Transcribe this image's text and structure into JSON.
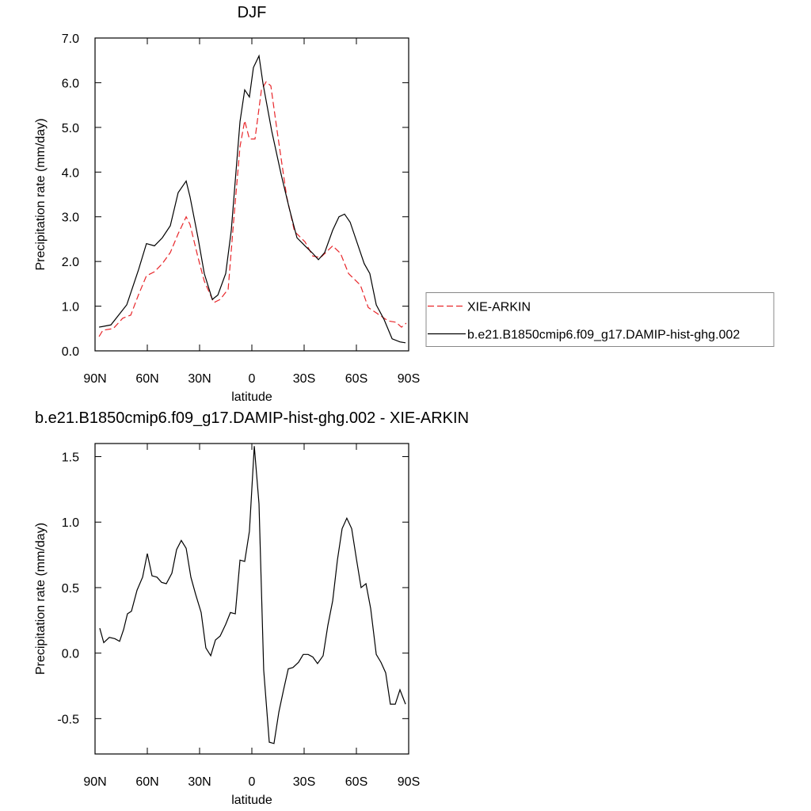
{
  "chart_data": [
    {
      "type": "line",
      "title": "DJF",
      "xlabel": "latitude",
      "ylabel": "Precipitation rate (mm/day)",
      "xlim": [
        90,
        -90
      ],
      "xticks": [
        {
          "value": 90,
          "label": "90N"
        },
        {
          "value": 60,
          "label": "60N"
        },
        {
          "value": 30,
          "label": "30N"
        },
        0,
        {
          "value": -30,
          "label": "30S"
        },
        {
          "value": -60,
          "label": "60S"
        },
        {
          "value": -90,
          "label": "90S"
        }
      ],
      "ylim": [
        0,
        7
      ],
      "yticks": [
        {
          "value": 0,
          "label": "0.0"
        },
        {
          "value": 1,
          "label": "1.0"
        },
        {
          "value": 2,
          "label": "2.0"
        },
        {
          "value": 3,
          "label": "3.0"
        },
        {
          "value": 4,
          "label": "4.0"
        },
        {
          "value": 5,
          "label": "5.0"
        },
        {
          "value": 6,
          "label": "6.0"
        },
        {
          "value": 7,
          "label": "7.0"
        }
      ],
      "legend": "right",
      "series": [
        {
          "name": "XIE-ARKIN",
          "color": "#e8262a",
          "dash": true,
          "x": [
            87.7,
            85.5,
            79.5,
            74.1,
            69.5,
            65,
            60.5,
            55.9,
            51.4,
            46.8,
            42.3,
            37.7,
            35.5,
            30.9,
            27.3,
            21.8,
            18.2,
            13.6,
            10.5,
            6.8,
            4.1,
            1.4,
            -1.8,
            -5.5,
            -8.2,
            -10.9,
            -14.5,
            -20,
            -24.5,
            -30.5,
            -35,
            -39.5,
            -46.4,
            -50.9,
            -55.5,
            -62.3,
            -66.8,
            -71.4,
            -78.2,
            -82.7,
            -85.9,
            -88.6
          ],
          "values": [
            0.32,
            0.46,
            0.5,
            0.73,
            0.8,
            1.26,
            1.68,
            1.77,
            1.95,
            2.2,
            2.62,
            3.0,
            2.83,
            2.09,
            1.56,
            1.08,
            1.15,
            1.38,
            2.88,
            4.57,
            5.15,
            4.74,
            4.74,
            5.84,
            6.02,
            5.93,
            4.92,
            3.45,
            2.67,
            2.44,
            2.12,
            2.09,
            2.35,
            2.18,
            1.73,
            1.47,
            0.97,
            0.85,
            0.67,
            0.64,
            0.53,
            0.62
          ]
        },
        {
          "name": "b.e21.B1850cmip6.f09_g17.DAMIP-hist-ghg.002",
          "color": "#000000",
          "dash": false,
          "x": [
            87.7,
            80.9,
            71.8,
            65,
            60.5,
            55.9,
            51.4,
            46.8,
            42.3,
            37.7,
            35.5,
            30.9,
            27.3,
            22.7,
            19.5,
            15,
            11.8,
            6.8,
            4.1,
            1.4,
            -0.9,
            -4.1,
            -6.4,
            -11.4,
            -16.8,
            -21.4,
            -25.9,
            -30.5,
            -35,
            -38.2,
            -41.8,
            -46.4,
            -50,
            -53.2,
            -56.4,
            -64.5,
            -67.7,
            -71.4,
            -75.9,
            -80.5,
            -85,
            -88.2
          ],
          "values": [
            0.53,
            0.58,
            1.03,
            1.82,
            2.4,
            2.35,
            2.53,
            2.8,
            3.54,
            3.8,
            3.45,
            2.53,
            1.73,
            1.15,
            1.25,
            1.73,
            2.7,
            5.13,
            5.84,
            5.68,
            6.34,
            6.6,
            5.98,
            4.92,
            3.95,
            3.2,
            2.53,
            2.35,
            2.18,
            2.04,
            2.2,
            2.7,
            3.0,
            3.06,
            2.88,
            1.95,
            1.73,
            1.03,
            0.7,
            0.27,
            0.2,
            0.18
          ]
        }
      ]
    },
    {
      "type": "line",
      "title": "b.e21.B1850cmip6.f09_g17.DAMIP-hist-ghg.002 - XIE-ARKIN",
      "xlabel": "latitude",
      "ylabel": "Precipitation rate (mm/day)",
      "xlim": [
        90,
        -90
      ],
      "xticks": [
        {
          "value": 90,
          "label": "90N"
        },
        {
          "value": 60,
          "label": "60N"
        },
        {
          "value": 30,
          "label": "30N"
        },
        0,
        {
          "value": -30,
          "label": "30S"
        },
        {
          "value": -60,
          "label": "60S"
        },
        {
          "value": -90,
          "label": "90S"
        }
      ],
      "ylim": [
        -0.77,
        1.6
      ],
      "yticks": [
        -0.5,
        {
          "value": 0,
          "label": "0.0"
        },
        0.5,
        {
          "value": 1,
          "label": "1.0"
        },
        1.5
      ],
      "series": [
        {
          "color": "#000000",
          "dash": false,
          "x": [
            87.3,
            85,
            81.8,
            78.6,
            75.9,
            73.6,
            71.4,
            69.1,
            65.9,
            62.7,
            60,
            57.3,
            54.5,
            51.8,
            49.1,
            45.9,
            43.2,
            40.5,
            37.7,
            35,
            32.3,
            29.1,
            26.4,
            23.6,
            20.9,
            18.2,
            15,
            12.3,
            9.5,
            6.8,
            4.1,
            1.4,
            -1.4,
            -4.1,
            -6.8,
            -10,
            -12.7,
            -15.5,
            -18.2,
            -20.9,
            -23.6,
            -26.8,
            -29.5,
            -32.3,
            -35,
            -37.7,
            -40.9,
            -43.6,
            -46.4,
            -49.1,
            -51.8,
            -54.5,
            -57.3,
            -60,
            -62.7,
            -65.5,
            -68.2,
            -71.4,
            -74.1,
            -76.8,
            -79.5,
            -82.3,
            -85,
            -88.2
          ],
          "values": [
            0.19,
            0.08,
            0.12,
            0.11,
            0.09,
            0.18,
            0.3,
            0.32,
            0.48,
            0.58,
            0.76,
            0.59,
            0.58,
            0.54,
            0.53,
            0.61,
            0.79,
            0.86,
            0.8,
            0.58,
            0.45,
            0.31,
            0.04,
            -0.02,
            0.1,
            0.13,
            0.22,
            0.31,
            0.3,
            0.71,
            0.7,
            0.93,
            1.58,
            1.14,
            -0.13,
            -0.68,
            -0.69,
            -0.45,
            -0.28,
            -0.12,
            -0.11,
            -0.07,
            -0.01,
            -0.01,
            -0.03,
            -0.08,
            -0.02,
            0.21,
            0.4,
            0.71,
            0.95,
            1.03,
            0.95,
            0.72,
            0.5,
            0.53,
            0.34,
            -0.01,
            -0.07,
            -0.15,
            -0.39,
            -0.39,
            -0.28,
            -0.39
          ]
        }
      ]
    }
  ]
}
